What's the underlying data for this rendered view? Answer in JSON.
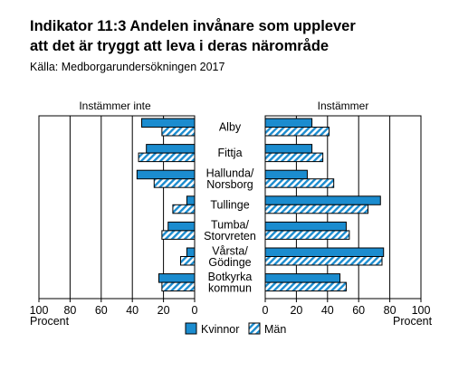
{
  "chart_data": {
    "type": "bar",
    "title_line1": "Indikator 11:3 Andelen invånare som upplever",
    "title_line2": "att det är tryggt att leva i deras närområde",
    "subtitle": "Källa: Medborgarundersökningen 2017",
    "left_panel_label": "Instämmer inte",
    "right_panel_label": "Instämmer",
    "xlabel": "Procent",
    "xlim": [
      0,
      100
    ],
    "ticks": [
      0,
      20,
      40,
      60,
      80,
      100
    ],
    "categories": [
      [
        "Alby"
      ],
      [
        "Fittja"
      ],
      [
        "Hallunda/",
        "Norsborg"
      ],
      [
        "Tullinge"
      ],
      [
        "Tumba/",
        "Storvreten"
      ],
      [
        "Vårsta/",
        "Gödinge"
      ],
      [
        "Botkyrka",
        "kommun"
      ]
    ],
    "series": [
      {
        "name": "Kvinnor",
        "color": "#1b8ccf",
        "pattern": "solid",
        "disagree": [
          34,
          31,
          37,
          5,
          17,
          5,
          23
        ],
        "agree": [
          30,
          30,
          27,
          74,
          52,
          76,
          48
        ]
      },
      {
        "name": "Män",
        "color": "#1b8ccf",
        "pattern": "hatch",
        "disagree": [
          21,
          36,
          26,
          14,
          21,
          9,
          21
        ],
        "agree": [
          41,
          37,
          44,
          66,
          54,
          75,
          52
        ]
      }
    ],
    "grid": true,
    "legend_position": "bottom"
  }
}
